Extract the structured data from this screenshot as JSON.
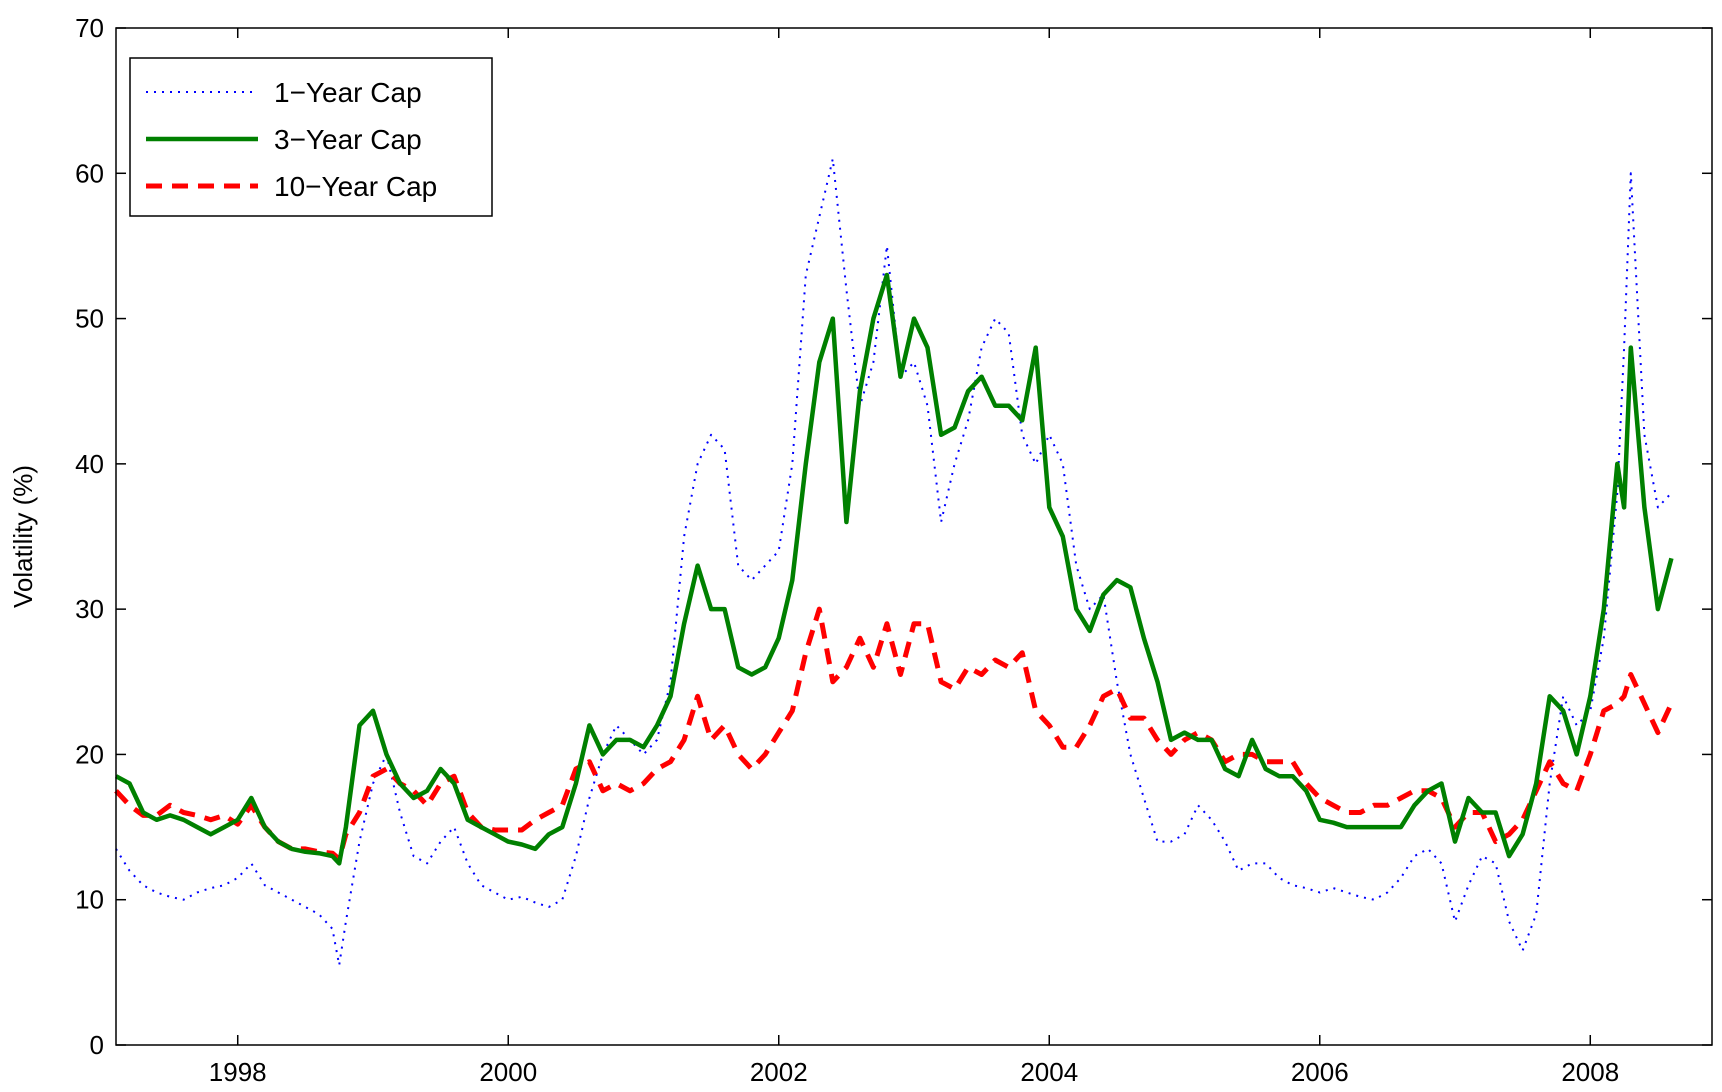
{
  "chart_data": {
    "type": "line",
    "ylabel": "Volatility (%)",
    "xlim": [
      1997.1,
      2008.9
    ],
    "ylim": [
      0,
      70
    ],
    "x_ticks": [
      1998,
      2000,
      2002,
      2004,
      2006,
      2008
    ],
    "x_tick_labels": [
      "1998",
      "2000",
      "2002",
      "2004",
      "2006",
      "2008"
    ],
    "y_ticks": [
      0,
      10,
      20,
      30,
      40,
      50,
      60,
      70
    ],
    "y_tick_labels": [
      "0",
      "10",
      "20",
      "30",
      "40",
      "50",
      "60",
      "70"
    ],
    "grid": false,
    "legend_position": "top-left",
    "series": [
      {
        "name": "1−Year Cap",
        "color": "#0000ff",
        "style": "dotted",
        "x": [
          1997.1,
          1997.2,
          1997.3,
          1997.4,
          1997.5,
          1997.6,
          1997.7,
          1997.8,
          1997.9,
          1998.0,
          1998.1,
          1998.2,
          1998.3,
          1998.4,
          1998.5,
          1998.6,
          1998.7,
          1998.75,
          1998.8,
          1998.9,
          1999.0,
          1999.1,
          1999.2,
          1999.3,
          1999.4,
          1999.5,
          1999.6,
          1999.7,
          1999.8,
          1999.9,
          2000.0,
          2000.1,
          2000.2,
          2000.3,
          2000.4,
          2000.5,
          2000.6,
          2000.7,
          2000.8,
          2000.9,
          2001.0,
          2001.1,
          2001.2,
          2001.3,
          2001.4,
          2001.5,
          2001.6,
          2001.7,
          2001.8,
          2001.9,
          2002.0,
          2002.1,
          2002.2,
          2002.3,
          2002.4,
          2002.5,
          2002.6,
          2002.7,
          2002.8,
          2002.9,
          2003.0,
          2003.1,
          2003.2,
          2003.3,
          2003.4,
          2003.5,
          2003.6,
          2003.7,
          2003.8,
          2003.9,
          2004.0,
          2004.1,
          2004.2,
          2004.3,
          2004.4,
          2004.5,
          2004.6,
          2004.7,
          2004.8,
          2004.9,
          2005.0,
          2005.1,
          2005.2,
          2005.3,
          2005.4,
          2005.5,
          2005.6,
          2005.7,
          2005.8,
          2005.9,
          2006.0,
          2006.1,
          2006.2,
          2006.3,
          2006.4,
          2006.5,
          2006.6,
          2006.7,
          2006.8,
          2006.9,
          2007.0,
          2007.1,
          2007.2,
          2007.3,
          2007.4,
          2007.5,
          2007.6,
          2007.7,
          2007.8,
          2007.9,
          2008.0,
          2008.1,
          2008.2,
          2008.25,
          2008.3,
          2008.4,
          2008.5,
          2008.6
        ],
        "y": [
          13.5,
          12.0,
          11.0,
          10.5,
          10.2,
          10.0,
          10.5,
          10.8,
          11.0,
          11.5,
          12.5,
          11.0,
          10.5,
          10.0,
          9.5,
          9.0,
          8.0,
          5.5,
          8.5,
          14.0,
          18.0,
          20.0,
          16.0,
          13.0,
          12.5,
          14.0,
          15.0,
          12.5,
          11.0,
          10.5,
          10.0,
          10.2,
          9.8,
          9.5,
          10.0,
          13.0,
          17.0,
          20.0,
          22.0,
          21.0,
          20.0,
          21.0,
          25.0,
          35.0,
          40.0,
          42.0,
          41.0,
          33.0,
          32.0,
          33.0,
          34.0,
          40.0,
          53.0,
          57.0,
          61.0,
          52.0,
          44.0,
          47.0,
          55.0,
          46.0,
          47.0,
          44.0,
          36.0,
          40.0,
          43.0,
          48.0,
          50.0,
          49.0,
          42.0,
          40.0,
          42.0,
          40.0,
          33.0,
          30.0,
          31.0,
          25.0,
          20.0,
          17.0,
          14.0,
          14.0,
          14.5,
          16.5,
          15.5,
          14.0,
          12.0,
          12.5,
          12.5,
          11.5,
          11.0,
          10.8,
          10.5,
          10.8,
          10.5,
          10.2,
          10.0,
          10.5,
          11.5,
          13.0,
          13.5,
          12.5,
          8.5,
          11.0,
          13.0,
          12.5,
          8.5,
          6.5,
          9.0,
          18.0,
          24.0,
          22.0,
          23.0,
          28.0,
          38.0,
          48.0,
          60.0,
          42.0,
          37.0,
          38.0
        ]
      },
      {
        "name": "3−Year Cap",
        "color": "#008000",
        "style": "solid",
        "x": [
          1997.1,
          1997.2,
          1997.3,
          1997.4,
          1997.5,
          1997.6,
          1997.7,
          1997.8,
          1997.9,
          1998.0,
          1998.1,
          1998.2,
          1998.3,
          1998.4,
          1998.5,
          1998.6,
          1998.7,
          1998.75,
          1998.8,
          1998.9,
          1999.0,
          1999.1,
          1999.2,
          1999.3,
          1999.4,
          1999.5,
          1999.6,
          1999.7,
          1999.8,
          1999.9,
          2000.0,
          2000.1,
          2000.2,
          2000.3,
          2000.4,
          2000.5,
          2000.6,
          2000.7,
          2000.8,
          2000.9,
          2001.0,
          2001.1,
          2001.2,
          2001.3,
          2001.4,
          2001.5,
          2001.6,
          2001.7,
          2001.8,
          2001.9,
          2002.0,
          2002.1,
          2002.2,
          2002.3,
          2002.4,
          2002.5,
          2002.6,
          2002.7,
          2002.8,
          2002.9,
          2003.0,
          2003.1,
          2003.2,
          2003.3,
          2003.4,
          2003.5,
          2003.6,
          2003.7,
          2003.8,
          2003.9,
          2004.0,
          2004.1,
          2004.2,
          2004.3,
          2004.4,
          2004.5,
          2004.6,
          2004.7,
          2004.8,
          2004.9,
          2005.0,
          2005.1,
          2005.2,
          2005.3,
          2005.4,
          2005.5,
          2005.6,
          2005.7,
          2005.8,
          2005.9,
          2006.0,
          2006.1,
          2006.2,
          2006.3,
          2006.4,
          2006.5,
          2006.6,
          2006.7,
          2006.8,
          2006.9,
          2007.0,
          2007.1,
          2007.2,
          2007.3,
          2007.4,
          2007.5,
          2007.6,
          2007.7,
          2007.8,
          2007.9,
          2008.0,
          2008.1,
          2008.2,
          2008.25,
          2008.3,
          2008.4,
          2008.5,
          2008.6
        ],
        "y": [
          18.5,
          18.0,
          16.0,
          15.5,
          15.8,
          15.5,
          15.0,
          14.5,
          15.0,
          15.5,
          17.0,
          15.0,
          14.0,
          13.5,
          13.3,
          13.2,
          13.0,
          12.5,
          15.0,
          22.0,
          23.0,
          20.0,
          18.0,
          17.0,
          17.5,
          19.0,
          18.0,
          15.5,
          15.0,
          14.5,
          14.0,
          13.8,
          13.5,
          14.5,
          15.0,
          18.0,
          22.0,
          20.0,
          21.0,
          21.0,
          20.5,
          22.0,
          24.0,
          29.0,
          33.0,
          30.0,
          30.0,
          26.0,
          25.5,
          26.0,
          28.0,
          32.0,
          40.0,
          47.0,
          50.0,
          36.0,
          45.0,
          50.0,
          53.0,
          46.0,
          50.0,
          48.0,
          42.0,
          42.5,
          45.0,
          46.0,
          44.0,
          44.0,
          43.0,
          48.0,
          37.0,
          35.0,
          30.0,
          28.5,
          31.0,
          32.0,
          31.5,
          28.0,
          25.0,
          21.0,
          21.5,
          21.0,
          21.0,
          19.0,
          18.5,
          21.0,
          19.0,
          18.5,
          18.5,
          17.5,
          15.5,
          15.3,
          15.0,
          15.0,
          15.0,
          15.0,
          15.0,
          16.5,
          17.5,
          18.0,
          14.0,
          17.0,
          16.0,
          16.0,
          13.0,
          14.5,
          18.0,
          24.0,
          23.0,
          20.0,
          24.0,
          30.0,
          40.0,
          37.0,
          48.0,
          37.0,
          30.0,
          33.5
        ]
      },
      {
        "name": "10−Year Cap",
        "color": "#ff0000",
        "style": "dashed",
        "x": [
          1997.1,
          1997.2,
          1997.3,
          1997.4,
          1997.5,
          1997.6,
          1997.7,
          1997.8,
          1997.9,
          1998.0,
          1998.1,
          1998.2,
          1998.3,
          1998.4,
          1998.5,
          1998.6,
          1998.7,
          1998.75,
          1998.8,
          1998.9,
          1999.0,
          1999.1,
          1999.2,
          1999.3,
          1999.4,
          1999.5,
          1999.6,
          1999.7,
          1999.8,
          1999.9,
          2000.0,
          2000.1,
          2000.2,
          2000.3,
          2000.4,
          2000.5,
          2000.6,
          2000.7,
          2000.8,
          2000.9,
          2001.0,
          2001.1,
          2001.2,
          2001.3,
          2001.4,
          2001.5,
          2001.6,
          2001.7,
          2001.8,
          2001.9,
          2002.0,
          2002.1,
          2002.2,
          2002.3,
          2002.4,
          2002.5,
          2002.6,
          2002.7,
          2002.8,
          2002.9,
          2003.0,
          2003.1,
          2003.2,
          2003.3,
          2003.4,
          2003.5,
          2003.6,
          2003.7,
          2003.8,
          2003.9,
          2004.0,
          2004.1,
          2004.2,
          2004.3,
          2004.4,
          2004.5,
          2004.6,
          2004.7,
          2004.8,
          2004.9,
          2005.0,
          2005.1,
          2005.2,
          2005.3,
          2005.4,
          2005.5,
          2005.6,
          2005.7,
          2005.8,
          2005.9,
          2006.0,
          2006.1,
          2006.2,
          2006.3,
          2006.4,
          2006.5,
          2006.6,
          2006.7,
          2006.8,
          2006.9,
          2007.0,
          2007.1,
          2007.2,
          2007.3,
          2007.4,
          2007.5,
          2007.6,
          2007.7,
          2007.8,
          2007.9,
          2008.0,
          2008.1,
          2008.2,
          2008.25,
          2008.3,
          2008.4,
          2008.5,
          2008.6
        ],
        "y": [
          17.5,
          16.5,
          15.8,
          15.8,
          16.5,
          16.0,
          15.8,
          15.5,
          15.8,
          15.2,
          16.5,
          15.0,
          14.0,
          13.5,
          13.5,
          13.3,
          13.2,
          12.8,
          14.5,
          16.0,
          18.5,
          19.0,
          18.0,
          17.5,
          16.5,
          18.0,
          18.5,
          16.0,
          15.0,
          14.8,
          14.8,
          14.8,
          15.5,
          16.0,
          16.5,
          19.0,
          19.5,
          17.5,
          18.0,
          17.5,
          18.0,
          19.0,
          19.5,
          21.0,
          24.0,
          21.0,
          22.0,
          20.0,
          19.0,
          20.0,
          21.5,
          23.0,
          27.0,
          30.0,
          25.0,
          26.0,
          28.0,
          26.0,
          29.0,
          25.5,
          29.0,
          29.0,
          25.0,
          24.5,
          26.0,
          25.5,
          26.5,
          26.0,
          27.0,
          23.0,
          22.0,
          20.5,
          20.5,
          22.0,
          24.0,
          24.5,
          22.5,
          22.5,
          21.0,
          20.0,
          21.0,
          21.5,
          21.0,
          19.5,
          20.0,
          20.0,
          19.5,
          19.5,
          19.5,
          18.0,
          17.0,
          16.5,
          16.0,
          16.0,
          16.5,
          16.5,
          17.0,
          17.5,
          17.5,
          17.0,
          15.0,
          16.0,
          16.0,
          14.0,
          14.5,
          15.5,
          17.5,
          19.5,
          18.0,
          17.5,
          20.0,
          23.0,
          23.5,
          24.0,
          25.5,
          23.5,
          21.5,
          23.5
        ]
      }
    ]
  }
}
